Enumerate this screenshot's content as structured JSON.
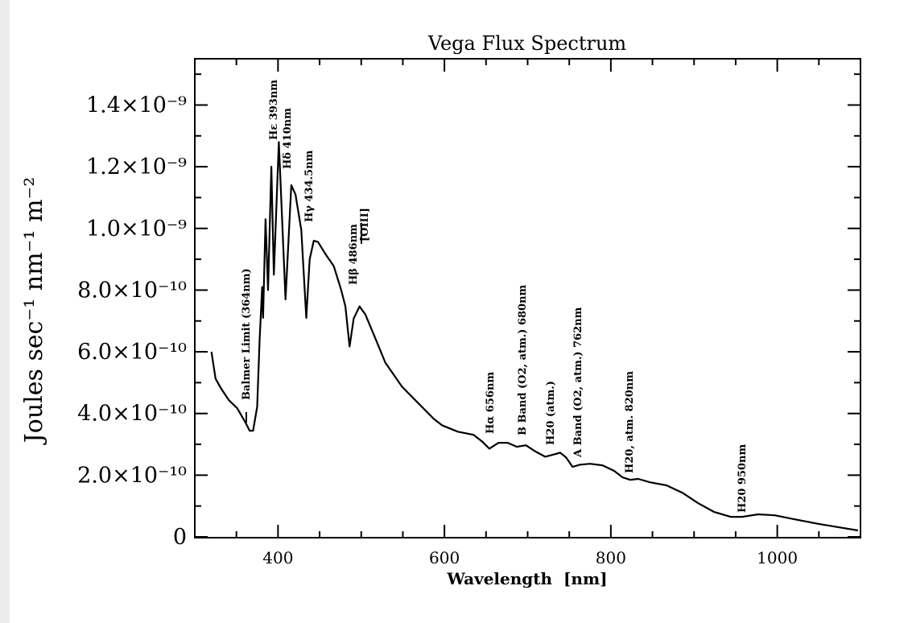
{
  "chart_data": {
    "type": "line",
    "title": "Vega Flux Spectrum",
    "x_label": "Wavelength  [nm]",
    "y_label": "Joules sec⁻¹ nm⁻¹ m⁻²",
    "color": "#000000",
    "xlim": [
      300,
      1100
    ],
    "ylim": [
      0,
      1.55e-09
    ],
    "xticks": [
      400,
      600,
      800,
      1000
    ],
    "xminorticks": [
      350,
      450,
      500,
      550,
      650,
      700,
      750,
      850,
      900,
      950,
      1050
    ],
    "yticks": [
      0,
      {
        "value": 2e-10,
        "label": "2.0×10⁻¹⁰"
      },
      {
        "value": 4e-10,
        "label": "4.0×10⁻¹⁰"
      },
      {
        "value": 6e-10,
        "label": "6.0×10⁻¹⁰"
      },
      {
        "value": 8e-10,
        "label": "8.0×10⁻¹⁰"
      },
      {
        "value": 1e-09,
        "label": "1.0×10⁻⁹"
      },
      {
        "value": 1.2e-09,
        "label": "1.2×10⁻⁹"
      },
      {
        "value": 1.4e-09,
        "label": "1.4×10⁻⁹"
      }
    ],
    "yminorticks": [
      1e-10,
      3e-10,
      5e-10,
      7e-10,
      9e-10,
      1.1e-09,
      1.3e-09,
      1.5e-09
    ],
    "x": [
      320,
      325,
      332,
      341,
      351,
      361,
      366,
      370,
      375,
      378,
      381,
      382,
      385,
      388,
      392,
      395,
      401,
      409,
      416,
      421,
      428,
      434,
      438,
      443,
      448,
      457,
      467,
      476,
      481,
      486,
      491,
      498,
      505,
      515,
      529,
      549,
      568,
      587,
      597,
      616,
      635,
      645,
      654,
      665,
      676,
      687,
      698,
      708,
      721,
      730,
      739,
      746,
      754,
      763,
      775,
      790,
      804,
      814,
      823,
      833,
      847,
      867,
      886,
      905,
      924,
      944,
      958,
      977,
      997,
      1021,
      1050,
      1074,
      1097
    ],
    "values": [
      6e-10,
      5.13e-10,
      4.79e-10,
      4.43e-10,
      4.17e-10,
      3.7e-10,
      3.44e-10,
      3.44e-10,
      4.22e-10,
      6.43e-10,
      8.1e-10,
      7.1e-10,
      1.03e-09,
      8e-10,
      1.2e-09,
      8.5e-10,
      1.28e-09,
      7.7e-10,
      1.14e-09,
      1.11e-09,
      9.95e-10,
      7.1e-10,
      9e-10,
      9.6e-10,
      9.56e-10,
      9.17e-10,
      8.78e-10,
      8e-10,
      7.47e-10,
      6.17e-10,
      7.08e-10,
      7.47e-10,
      7.21e-10,
      6.56e-10,
      5.65e-10,
      4.87e-10,
      4.35e-10,
      3.83e-10,
      3.62e-10,
      3.41e-10,
      3.31e-10,
      3.1e-10,
      2.86e-10,
      3.05e-10,
      3.05e-10,
      2.92e-10,
      2.97e-10,
      2.79e-10,
      2.6e-10,
      2.66e-10,
      2.73e-10,
      2.58e-10,
      2.27e-10,
      2.34e-10,
      2.37e-10,
      2.32e-10,
      2.14e-10,
      1.93e-10,
      1.85e-10,
      1.88e-10,
      1.77e-10,
      1.67e-10,
      1.43e-10,
      1.09e-10,
      8.1e-11,
      6.5e-11,
      6.5e-11,
      7.3e-11,
      7e-11,
      5.7e-11,
      4.2e-11,
      3.1e-11,
      2.1e-11
    ],
    "annotations": [
      "Balmer Limit (364nm)",
      "Hε 393nm",
      "Hδ 410nm",
      "Hγ 434.5nm",
      "Hβ 486nm",
      "[OIII]",
      "Hα 656nm",
      "B Band (O2, atm.) 680nm",
      "H20 (atm.)",
      "A Band (O2, atm.) 762nm",
      "H20, atm. 820nm",
      "H20 950nm"
    ]
  }
}
